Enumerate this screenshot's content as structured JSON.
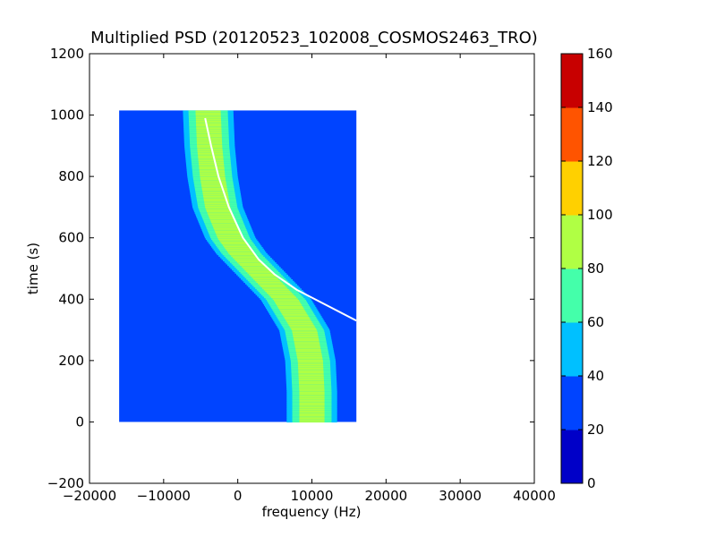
{
  "chart_data": {
    "type": "heatmap",
    "title": "Multiplied PSD (20120523_102008_COSMOS2463_TRO)",
    "xlabel": "frequency (Hz)",
    "ylabel": "time (s)",
    "xlim": [
      -20000,
      40000
    ],
    "ylim": [
      -200,
      1200
    ],
    "x_ticks": [
      -20000,
      -10000,
      0,
      10000,
      20000,
      30000,
      40000
    ],
    "x_tick_labels": [
      "−20000",
      "−10000",
      "0",
      "10000",
      "20000",
      "30000",
      "40000"
    ],
    "y_ticks": [
      -200,
      0,
      200,
      400,
      600,
      800,
      1000,
      1200
    ],
    "y_tick_labels": [
      "−200",
      "0",
      "200",
      "400",
      "600",
      "800",
      "1000",
      "1200"
    ],
    "grid": false,
    "data_extent": {
      "x": [
        -16000,
        16000
      ],
      "y": [
        0,
        1015
      ]
    },
    "background_level": 30,
    "band": {
      "description": "S-shaped high-PSD band; centre frequency vs time",
      "time": [
        0,
        100,
        200,
        300,
        400,
        450,
        500,
        550,
        600,
        700,
        800,
        900,
        1015
      ],
      "center_freq": [
        10000,
        10000,
        9800,
        9000,
        6500,
        4500,
        2500,
        500,
        -1000,
        -2700,
        -3400,
        -3800,
        -4000
      ],
      "half_width": 3400,
      "peak_level": 95
    },
    "white_trace": {
      "time": [
        330,
        380,
        430,
        480,
        530,
        600,
        700,
        800,
        900,
        990
      ],
      "freq": [
        16000,
        12000,
        8000,
        5000,
        2800,
        700,
        -1200,
        -2600,
        -3600,
        -4400
      ],
      "color": "#ffffff"
    },
    "colorbar": {
      "min": 0,
      "max": 160,
      "ticks": [
        0,
        20,
        40,
        60,
        80,
        100,
        120,
        140,
        160
      ],
      "tick_labels": [
        "0",
        "20",
        "40",
        "60",
        "80",
        "100",
        "120",
        "140",
        "160"
      ],
      "colors": [
        "#0000c8",
        "#0044ff",
        "#00c0ff",
        "#44ffaa",
        "#b0ff44",
        "#ffd000",
        "#ff5400",
        "#c80000"
      ]
    }
  }
}
